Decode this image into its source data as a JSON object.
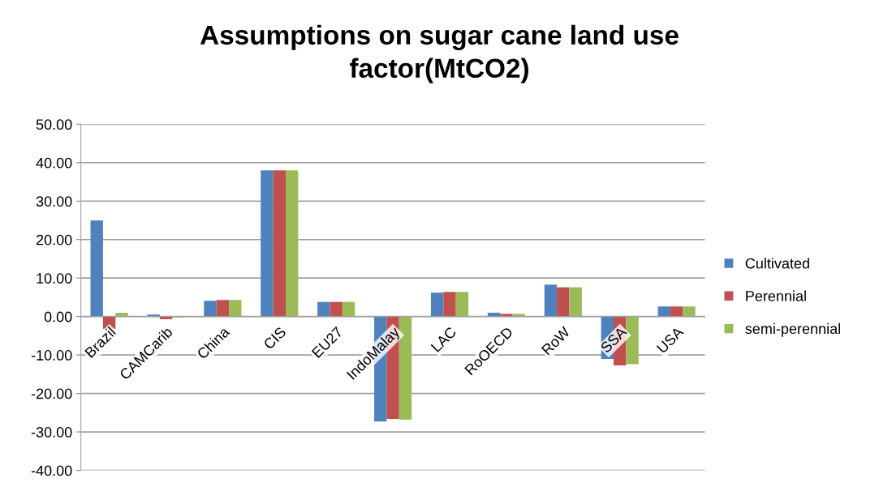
{
  "chart_data": {
    "type": "bar",
    "title": "Assumptions on sugar cane land use factor(MtCO2)",
    "categories": [
      "Brazil",
      "CAMCarib",
      "China",
      "CIS",
      "EU27",
      "IndoMalay",
      "LAC",
      "RoOECD",
      "RoW",
      "SSA",
      "USA"
    ],
    "series": [
      {
        "name": "Cultivated",
        "color": "#4f81bd",
        "values": [
          25.0,
          0.5,
          4.1,
          38.0,
          3.8,
          -27.3,
          6.2,
          1.0,
          8.3,
          -11.0,
          2.6
        ]
      },
      {
        "name": "Perennial",
        "color": "#c0504d",
        "values": [
          -3.2,
          -0.7,
          4.3,
          38.0,
          3.8,
          -26.6,
          6.4,
          0.7,
          7.6,
          -12.7,
          2.6
        ]
      },
      {
        "name": "semi-perennial",
        "color": "#9bbb59",
        "values": [
          1.0,
          -0.3,
          4.3,
          38.0,
          3.8,
          -26.8,
          6.4,
          0.7,
          7.6,
          -12.4,
          2.6
        ]
      }
    ],
    "ylim": [
      -40,
      50
    ],
    "yticks": [
      {
        "value": -40,
        "label": "-40.00"
      },
      {
        "value": -30,
        "label": "-30.00"
      },
      {
        "value": -20,
        "label": "-20.00"
      },
      {
        "value": -10,
        "label": "-10.00"
      },
      {
        "value": 0,
        "label": "0.00"
      },
      {
        "value": 10,
        "label": "10.00"
      },
      {
        "value": 20,
        "label": "20.00"
      },
      {
        "value": 30,
        "label": "30.00"
      },
      {
        "value": 40,
        "label": "40.00"
      },
      {
        "value": 50,
        "label": "50.00"
      }
    ],
    "grid": "y",
    "legend": "right"
  }
}
